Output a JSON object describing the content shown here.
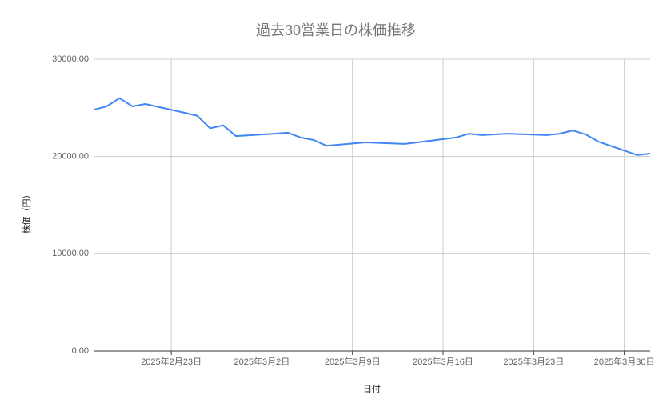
{
  "chart_data": {
    "type": "line",
    "title": "過去30営業日の株価推移",
    "x_label": "日付",
    "y_label": "株価（円）",
    "x": [
      "2025-02-17",
      "2025-02-18",
      "2025-02-19",
      "2025-02-20",
      "2025-02-21",
      "2025-02-24",
      "2025-02-25",
      "2025-02-26",
      "2025-02-27",
      "2025-02-28",
      "2025-03-03",
      "2025-03-04",
      "2025-03-05",
      "2025-03-06",
      "2025-03-07",
      "2025-03-10",
      "2025-03-11",
      "2025-03-12",
      "2025-03-13",
      "2025-03-14",
      "2025-03-17",
      "2025-03-18",
      "2025-03-19",
      "2025-03-20",
      "2025-03-21",
      "2025-03-24",
      "2025-03-25",
      "2025-03-26",
      "2025-03-27",
      "2025-03-28",
      "2025-03-31",
      "2025-04-01"
    ],
    "series": [
      {
        "name": "株価",
        "color": "#4285f4",
        "values": [
          24800,
          25150,
          26000,
          25150,
          25400,
          24500,
          24200,
          22900,
          23200,
          22100,
          22350,
          22450,
          21950,
          21700,
          21100,
          21450,
          21400,
          21350,
          21300,
          21450,
          21950,
          22350,
          22200,
          22270,
          22350,
          22200,
          22350,
          22680,
          22280,
          21530,
          20150,
          20300
        ]
      }
    ],
    "xlim": [
      "2025-02-17",
      "2025-04-01"
    ],
    "xticks": [
      {
        "value": "2025-02-23",
        "label": "2025年2月23日"
      },
      {
        "value": "2025-03-02",
        "label": "2025年3月2日"
      },
      {
        "value": "2025-03-09",
        "label": "2025年3月9日"
      },
      {
        "value": "2025-03-16",
        "label": "2025年3月16日"
      },
      {
        "value": "2025-03-23",
        "label": "2025年3月23日"
      },
      {
        "value": "2025-03-30",
        "label": "2025年3月30日"
      }
    ],
    "ylim": [
      0,
      30000
    ],
    "yticks": [
      {
        "value": 0,
        "label": "0.00"
      },
      {
        "value": 10000,
        "label": "10000.00"
      },
      {
        "value": 20000,
        "label": "20000.00"
      },
      {
        "value": 30000,
        "label": "30000.00"
      }
    ],
    "grid": true
  }
}
